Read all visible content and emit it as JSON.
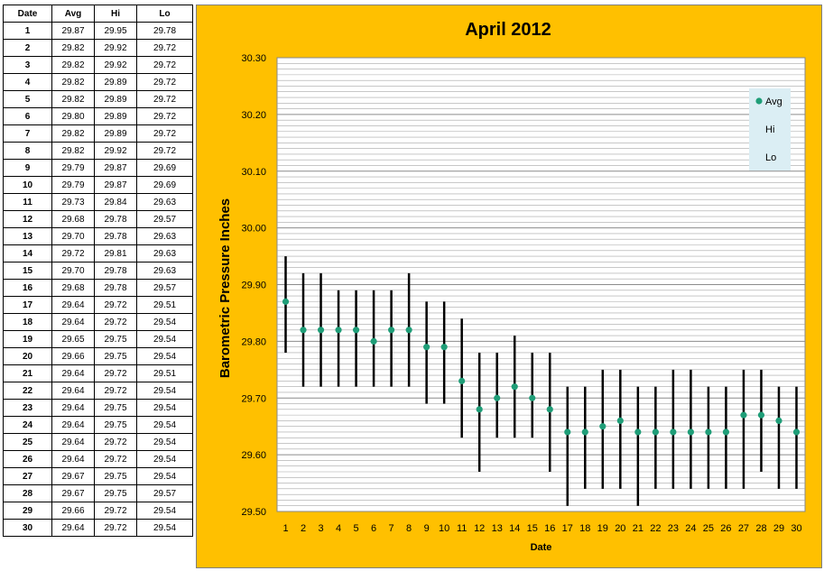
{
  "table": {
    "headers": [
      "Date",
      "Avg",
      "Hi",
      "Lo"
    ],
    "rows": [
      [
        "1",
        "29.87",
        "29.95",
        "29.78"
      ],
      [
        "2",
        "29.82",
        "29.92",
        "29.72"
      ],
      [
        "3",
        "29.82",
        "29.92",
        "29.72"
      ],
      [
        "4",
        "29.82",
        "29.89",
        "29.72"
      ],
      [
        "5",
        "29.82",
        "29.89",
        "29.72"
      ],
      [
        "6",
        "29.80",
        "29.89",
        "29.72"
      ],
      [
        "7",
        "29.82",
        "29.89",
        "29.72"
      ],
      [
        "8",
        "29.82",
        "29.92",
        "29.72"
      ],
      [
        "9",
        "29.79",
        "29.87",
        "29.69"
      ],
      [
        "10",
        "29.79",
        "29.87",
        "29.69"
      ],
      [
        "11",
        "29.73",
        "29.84",
        "29.63"
      ],
      [
        "12",
        "29.68",
        "29.78",
        "29.57"
      ],
      [
        "13",
        "29.70",
        "29.78",
        "29.63"
      ],
      [
        "14",
        "29.72",
        "29.81",
        "29.63"
      ],
      [
        "15",
        "29.70",
        "29.78",
        "29.63"
      ],
      [
        "16",
        "29.68",
        "29.78",
        "29.57"
      ],
      [
        "17",
        "29.64",
        "29.72",
        "29.51"
      ],
      [
        "18",
        "29.64",
        "29.72",
        "29.54"
      ],
      [
        "19",
        "29.65",
        "29.75",
        "29.54"
      ],
      [
        "20",
        "29.66",
        "29.75",
        "29.54"
      ],
      [
        "21",
        "29.64",
        "29.72",
        "29.51"
      ],
      [
        "22",
        "29.64",
        "29.72",
        "29.54"
      ],
      [
        "23",
        "29.64",
        "29.75",
        "29.54"
      ],
      [
        "24",
        "29.64",
        "29.75",
        "29.54"
      ],
      [
        "25",
        "29.64",
        "29.72",
        "29.54"
      ],
      [
        "26",
        "29.64",
        "29.72",
        "29.54"
      ],
      [
        "27",
        "29.67",
        "29.75",
        "29.54"
      ],
      [
        "28",
        "29.67",
        "29.75",
        "29.57"
      ],
      [
        "29",
        "29.66",
        "29.72",
        "29.54"
      ],
      [
        "30",
        "29.64",
        "29.72",
        "29.54"
      ]
    ]
  },
  "chart_data": {
    "type": "scatter",
    "title": "April 2012",
    "xlabel": "Date",
    "ylabel": "Barometric Pressure Inches",
    "x": [
      1,
      2,
      3,
      4,
      5,
      6,
      7,
      8,
      9,
      10,
      11,
      12,
      13,
      14,
      15,
      16,
      17,
      18,
      19,
      20,
      21,
      22,
      23,
      24,
      25,
      26,
      27,
      28,
      29,
      30
    ],
    "ylim": [
      29.5,
      30.3
    ],
    "yticks": [
      "29.50",
      "29.60",
      "29.70",
      "29.80",
      "29.90",
      "30.00",
      "30.10",
      "30.20",
      "30.30"
    ],
    "grid": true,
    "legend_position": "top-right",
    "series": [
      {
        "name": "Avg",
        "color": "#1f9e78",
        "values": [
          29.87,
          29.82,
          29.82,
          29.82,
          29.82,
          29.8,
          29.82,
          29.82,
          29.79,
          29.79,
          29.73,
          29.68,
          29.7,
          29.72,
          29.7,
          29.68,
          29.64,
          29.64,
          29.65,
          29.66,
          29.64,
          29.64,
          29.64,
          29.64,
          29.64,
          29.64,
          29.67,
          29.67,
          29.66,
          29.64
        ]
      },
      {
        "name": "Hi",
        "values": [
          29.95,
          29.92,
          29.92,
          29.89,
          29.89,
          29.89,
          29.89,
          29.92,
          29.87,
          29.87,
          29.84,
          29.78,
          29.78,
          29.81,
          29.78,
          29.78,
          29.72,
          29.72,
          29.75,
          29.75,
          29.72,
          29.72,
          29.75,
          29.75,
          29.72,
          29.72,
          29.75,
          29.75,
          29.72,
          29.72
        ]
      },
      {
        "name": "Lo",
        "values": [
          29.78,
          29.72,
          29.72,
          29.72,
          29.72,
          29.72,
          29.72,
          29.72,
          29.69,
          29.69,
          29.63,
          29.57,
          29.63,
          29.63,
          29.63,
          29.57,
          29.51,
          29.54,
          29.54,
          29.54,
          29.51,
          29.54,
          29.54,
          29.54,
          29.54,
          29.54,
          29.54,
          29.57,
          29.54,
          29.54
        ]
      }
    ],
    "colors": {
      "background": "#ffc000",
      "plot": "#ffffff",
      "grid": "#a6a6a6",
      "range_line": "#000000",
      "legend_bg": "#dbeef4"
    }
  }
}
